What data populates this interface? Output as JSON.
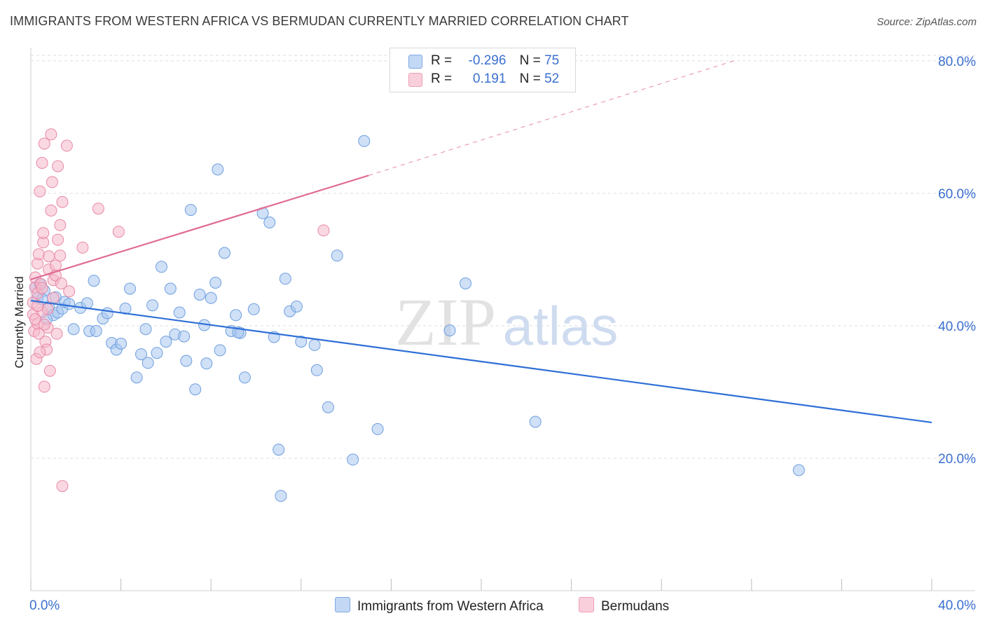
{
  "header": {
    "title": "IMMIGRANTS FROM WESTERN AFRICA VS BERMUDAN CURRENTLY MARRIED CORRELATION CHART",
    "source": "Source: ZipAtlas.com"
  },
  "legend_box": {
    "rows": [
      {
        "r_label": "R =",
        "r_value": "-0.296",
        "n_label": "N =",
        "n_value": "75",
        "color": "#a8c6f0"
      },
      {
        "r_label": "R =",
        "r_value": "0.191",
        "n_label": "N =",
        "n_value": "52",
        "color": "#f5b8cb"
      }
    ]
  },
  "watermark": {
    "zip": "ZIP",
    "atlas": "atlas"
  },
  "chart_data": {
    "type": "scatter",
    "title": "IMMIGRANTS FROM WESTERN AFRICA VS BERMUDAN CURRENTLY MARRIED CORRELATION CHART",
    "xlabel": "",
    "ylabel": "Currently Married",
    "xlim": [
      0,
      40
    ],
    "ylim": [
      0,
      82
    ],
    "x_tick_labels": [
      "0.0%",
      "40.0%"
    ],
    "y_ticks": [
      20,
      40,
      60,
      80
    ],
    "y_tick_labels": [
      "20.0%",
      "40.0%",
      "60.0%",
      "80.0%"
    ],
    "grid": true,
    "legend_position": "bottom-center",
    "series": [
      {
        "name": "Immigrants from Western Africa",
        "color": "#a8c6f0",
        "stroke": "#6f9fde",
        "line_color": "#2f6fd6",
        "trend": {
          "x": [
            0,
            40
          ],
          "y": [
            43.8,
            25.4
          ],
          "dashed_from": null
        },
        "points": [
          [
            0.2,
            45.8
          ],
          [
            0.3,
            44.2
          ],
          [
            0.4,
            46.3
          ],
          [
            0.6,
            45.3
          ],
          [
            0.8,
            42.8
          ],
          [
            1.0,
            41.6
          ],
          [
            1.1,
            44.3
          ],
          [
            1.2,
            42.0
          ],
          [
            1.4,
            42.6
          ],
          [
            1.5,
            43.6
          ],
          [
            1.7,
            43.3
          ],
          [
            1.9,
            39.5
          ],
          [
            2.2,
            42.7
          ],
          [
            2.5,
            43.4
          ],
          [
            2.6,
            39.2
          ],
          [
            2.9,
            39.2
          ],
          [
            2.8,
            46.8
          ],
          [
            3.2,
            41.1
          ],
          [
            3.4,
            41.9
          ],
          [
            3.6,
            37.4
          ],
          [
            3.8,
            36.4
          ],
          [
            4.0,
            37.3
          ],
          [
            4.2,
            42.6
          ],
          [
            4.4,
            45.6
          ],
          [
            4.7,
            32.2
          ],
          [
            4.9,
            35.7
          ],
          [
            5.1,
            39.5
          ],
          [
            5.2,
            34.4
          ],
          [
            5.4,
            43.1
          ],
          [
            5.6,
            35.9
          ],
          [
            5.8,
            48.9
          ],
          [
            6.0,
            37.6
          ],
          [
            6.2,
            45.6
          ],
          [
            6.4,
            38.7
          ],
          [
            6.6,
            42.0
          ],
          [
            6.8,
            38.4
          ],
          [
            6.9,
            34.7
          ],
          [
            7.1,
            57.5
          ],
          [
            7.3,
            30.4
          ],
          [
            7.5,
            44.7
          ],
          [
            7.7,
            40.1
          ],
          [
            7.8,
            34.3
          ],
          [
            8.0,
            44.2
          ],
          [
            8.2,
            46.5
          ],
          [
            8.4,
            36.3
          ],
          [
            8.6,
            51.0
          ],
          [
            8.9,
            39.2
          ],
          [
            9.1,
            41.6
          ],
          [
            9.3,
            38.9
          ],
          [
            9.5,
            32.2
          ],
          [
            9.9,
            42.5
          ],
          [
            10.3,
            57.0
          ],
          [
            10.6,
            55.6
          ],
          [
            10.8,
            38.3
          ],
          [
            11.0,
            21.3
          ],
          [
            11.1,
            14.3
          ],
          [
            11.3,
            47.1
          ],
          [
            11.5,
            42.2
          ],
          [
            11.8,
            42.9
          ],
          [
            12.0,
            37.6
          ],
          [
            12.6,
            37.1
          ],
          [
            12.7,
            33.3
          ],
          [
            13.2,
            27.7
          ],
          [
            13.6,
            50.6
          ],
          [
            14.3,
            19.8
          ],
          [
            14.8,
            67.9
          ],
          [
            15.4,
            24.4
          ],
          [
            18.6,
            39.3
          ],
          [
            19.3,
            46.4
          ],
          [
            22.4,
            25.5
          ],
          [
            34.1,
            18.2
          ],
          [
            8.3,
            63.6
          ],
          [
            0.5,
            44.0
          ],
          [
            0.7,
            41.0
          ],
          [
            9.2,
            39.0
          ]
        ]
      },
      {
        "name": "Bermudans",
        "color": "#f5b8cb",
        "stroke": "#e889a7",
        "line_color": "#e06b93",
        "trend": {
          "x": [
            0,
            15.0,
            31.2
          ],
          "y": [
            47.0,
            62.7,
            80.0
          ],
          "dashed_from": 15.0
        },
        "points": [
          [
            0.1,
            43.5
          ],
          [
            0.1,
            41.7
          ],
          [
            0.15,
            39.2
          ],
          [
            0.2,
            45.8
          ],
          [
            0.2,
            47.3
          ],
          [
            0.25,
            35.0
          ],
          [
            0.3,
            40.3
          ],
          [
            0.3,
            44.9
          ],
          [
            0.35,
            38.8
          ],
          [
            0.3,
            49.4
          ],
          [
            0.35,
            50.8
          ],
          [
            0.4,
            60.3
          ],
          [
            0.45,
            46.3
          ],
          [
            0.5,
            42.1
          ],
          [
            0.5,
            45.7
          ],
          [
            0.5,
            64.6
          ],
          [
            0.55,
            52.6
          ],
          [
            0.55,
            54.0
          ],
          [
            0.6,
            67.5
          ],
          [
            0.6,
            30.8
          ],
          [
            0.65,
            37.6
          ],
          [
            0.7,
            36.4
          ],
          [
            0.75,
            39.7
          ],
          [
            0.75,
            42.5
          ],
          [
            0.8,
            48.5
          ],
          [
            0.8,
            50.5
          ],
          [
            0.85,
            33.2
          ],
          [
            0.9,
            68.9
          ],
          [
            0.9,
            57.4
          ],
          [
            0.95,
            61.7
          ],
          [
            1.0,
            44.2
          ],
          [
            1.0,
            46.9
          ],
          [
            1.1,
            49.1
          ],
          [
            1.1,
            47.6
          ],
          [
            1.15,
            38.8
          ],
          [
            1.2,
            53.0
          ],
          [
            1.2,
            64.1
          ],
          [
            1.3,
            50.6
          ],
          [
            1.3,
            55.2
          ],
          [
            1.35,
            46.4
          ],
          [
            1.4,
            58.7
          ],
          [
            1.4,
            15.8
          ],
          [
            1.6,
            67.2
          ],
          [
            1.7,
            45.2
          ],
          [
            2.3,
            51.8
          ],
          [
            3.0,
            57.7
          ],
          [
            3.9,
            54.2
          ],
          [
            13.0,
            54.4
          ],
          [
            0.2,
            41.0
          ],
          [
            0.4,
            36.0
          ],
          [
            0.6,
            40.2
          ],
          [
            0.3,
            43.0
          ]
        ]
      }
    ]
  },
  "bottom_legend": {
    "items": [
      {
        "label": "Immigrants from Western Africa",
        "color": "#a8c6f0"
      },
      {
        "label": "Bermudans",
        "color": "#f5b8cb"
      }
    ]
  }
}
